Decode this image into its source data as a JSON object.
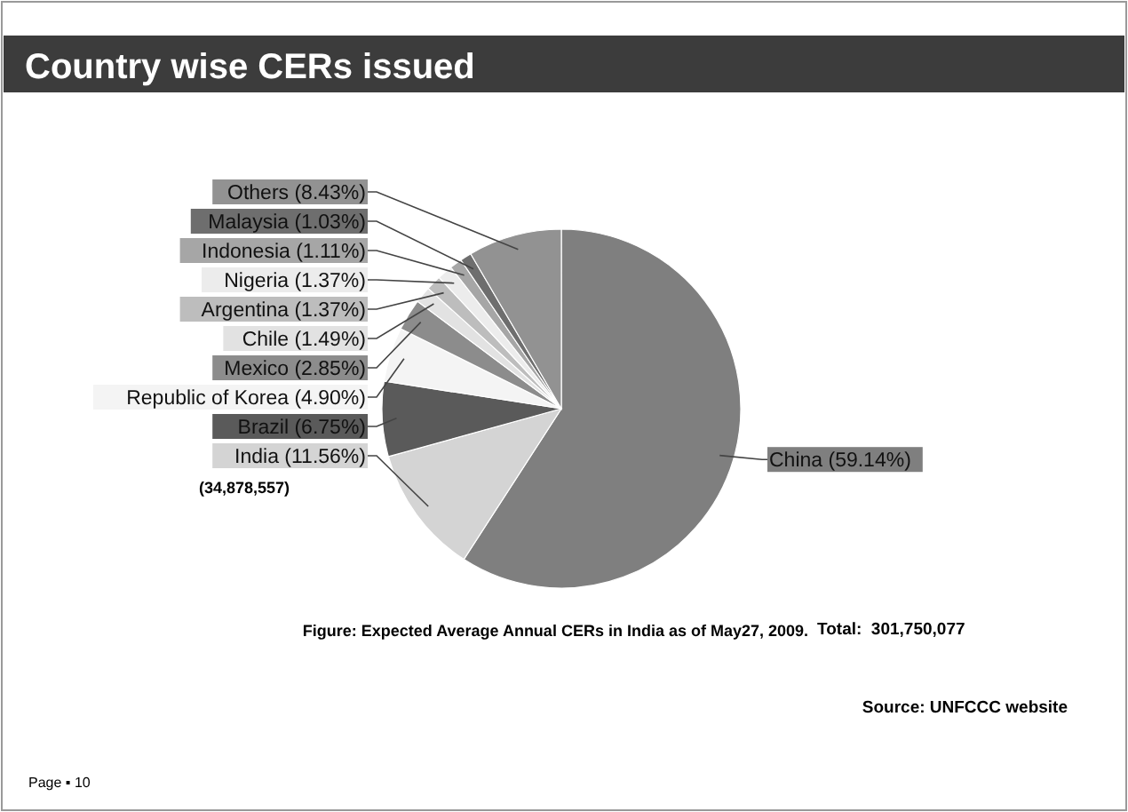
{
  "chart_data": {
    "type": "pie",
    "title": "Country wise CERs issued",
    "categories": [
      "China",
      "India",
      "Brazil",
      "Republic of Korea",
      "Mexico",
      "Chile",
      "Argentina",
      "Nigeria",
      "Indonesia",
      "Malaysia",
      "Others"
    ],
    "values": [
      59.14,
      11.56,
      6.75,
      4.9,
      2.85,
      1.49,
      1.37,
      1.37,
      1.11,
      1.03,
      8.43
    ],
    "value_labels": [
      "(59.14%)",
      "(11.56%)",
      "(6.75%)",
      "(4.90%)",
      "(2.85%)",
      "(1.49%)",
      "(1.37%)",
      "(1.37%)",
      "(1.11%)",
      "(1.03%)",
      "(8.43%)"
    ],
    "colors": [
      "#7f7f7f",
      "#d4d4d4",
      "#5a5a5a",
      "#f4f4f4",
      "#8c8c8c",
      "#e2e2e2",
      "#bdbdbd",
      "#ececec",
      "#a6a6a6",
      "#6e6e6e",
      "#929292"
    ],
    "annotations": [
      "(34,878,557)",
      "Figure: Expected Average Annual CERs in India as of May27, 2009.",
      "Total:  301,750,077",
      "Source: UNFCCC website",
      "Page ▪ 10"
    ]
  }
}
